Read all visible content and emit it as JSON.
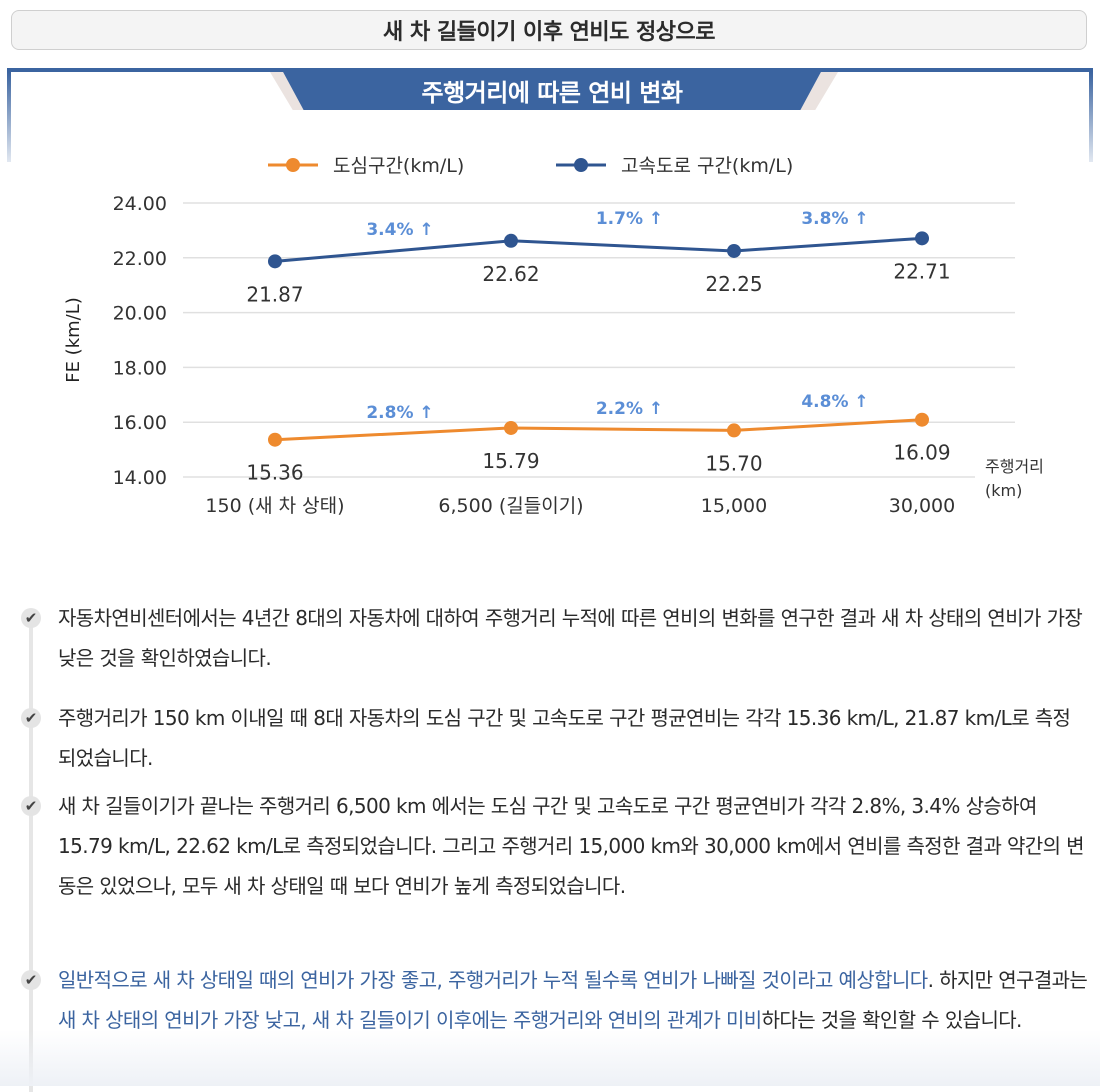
{
  "header": {
    "banner_title": "새 차 길들이기 이후 연비도 정상으로"
  },
  "chart": {
    "title": "주행거리에 따른 연비 변화"
  },
  "colors": {
    "city": "#ee8a2e",
    "highway": "#2f5590",
    "annotation": "#5b8ed6",
    "brand_blue": "#3b64a0",
    "grid": "#e0e0e0"
  },
  "chart_data": {
    "type": "line",
    "title": "주행거리에 따른 연비 변화",
    "xlabel": "주행거리 (km)",
    "xlabel_lines": [
      "주행거리",
      "(km)"
    ],
    "ylabel": "FE (km/L)",
    "ylim": [
      14,
      24
    ],
    "yticks": [
      "24.00",
      "22.00",
      "20.00",
      "18.00",
      "16.00",
      "14.00"
    ],
    "ytick_values": [
      24,
      22,
      20,
      18,
      16,
      14
    ],
    "grid": true,
    "legend_position": "top",
    "categories": [
      "150 (새 차 상태)",
      "6,500 (길들이기)",
      "15,000",
      "30,000"
    ],
    "series": [
      {
        "name": "도심구간(km/L)",
        "key": "city",
        "values": [
          15.36,
          15.79,
          15.7,
          16.09
        ],
        "labels": [
          "15.36",
          "15.79",
          "15.70",
          "16.09"
        ],
        "change_annotations": [
          "2.8% ↑",
          "2.2% ↑",
          "4.8% ↑"
        ]
      },
      {
        "name": "고속도로 구간(km/L)",
        "key": "highway",
        "values": [
          21.87,
          22.62,
          22.25,
          22.71
        ],
        "labels": [
          "21.87",
          "22.62",
          "22.25",
          "22.71"
        ],
        "change_annotations": [
          "3.4% ↑",
          "1.7% ↑",
          "3.8% ↑"
        ]
      }
    ]
  },
  "bullets": [
    {
      "segments": [
        {
          "text": "자동차연비센터에서는 4년간 8대의 자동차에 대하여 주행거리 누적에 따른 연비의 변화를 연구한 결과 새 차 상태의 연비가 가장 낮은 것을 확인하였습니다.",
          "highlight": false
        }
      ]
    },
    {
      "segments": [
        {
          "text": "주행거리가 150 km 이내일 때 8대 자동차의 도심 구간 및 고속도로 구간 평균연비는 각각 15.36 km/L, 21.87 km/L로 측정되었습니다.",
          "highlight": false
        }
      ]
    },
    {
      "segments": [
        {
          "text": "새 차 길들이기가 끝나는 주행거리 6,500 km 에서는 도심 구간 및 고속도로 구간 평균연비가 각각 2.8%, 3.4% 상승하여 15.79 km/L, 22.62 km/L로 측정되었습니다. 그리고 주행거리 15,000 km와 30,000 km에서 연비를 측정한 결과 약간의 변동은 있었으나, 모두 새 차 상태일 때 보다 연비가 높게 측정되었습니다.",
          "highlight": false
        }
      ]
    },
    {
      "segments": [
        {
          "text": "일반적으로 새 차 상태일 때의 연비가 가장 좋고, 주행거리가 누적 될수록 연비가 나빠질 것이라고 예상합니다",
          "highlight": true
        },
        {
          "text": ". 하지만 연구결과는 ",
          "highlight": false
        },
        {
          "text": "새 차 상태의 연비가 가장 낮고, 새 차 길들이기 이후에는 주행거리와 연비의 관계가 미비",
          "highlight": true
        },
        {
          "text": "하다는 것을 확인할 수 있습니다.",
          "highlight": false
        }
      ]
    }
  ],
  "icons": {
    "check": "✔"
  }
}
